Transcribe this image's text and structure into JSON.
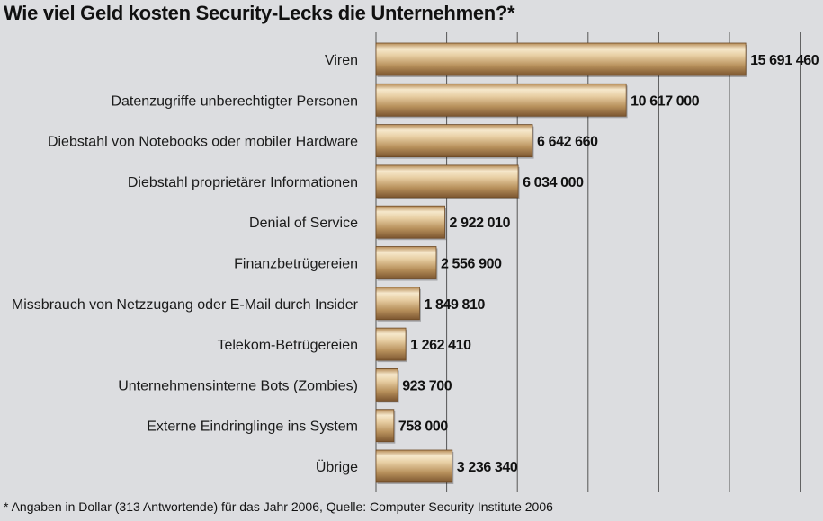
{
  "title": "Wie viel Geld kosten Security-Lecks die Unternehmen?*",
  "footnote": "* Angaben in Dollar (313 Antwortende) für das Jahr 2006, Quelle: Computer Security Institute 2006",
  "colors": {
    "background": "#dcdde0",
    "bar_light": "#f4e2c2",
    "bar_mid": "#c9a06a",
    "bar_dark": "#8a6232",
    "gridline": "#555555"
  },
  "chart_data": {
    "type": "bar",
    "orientation": "horizontal",
    "title": "Wie viel Geld kosten Security-Lecks die Unternehmen?*",
    "categories": [
      "Viren",
      "Datenzugriffe unberechtigter Personen",
      "Diebstahl von Notebooks oder mobiler Hardware",
      "Diebstahl proprietärer Informationen",
      "Denial of Service",
      "Finanzbetrügereien",
      "Missbrauch von Netzzugang oder E-Mail durch Insider",
      "Telekom-Betrügereien",
      "Unternehmensinterne Bots (Zombies)",
      "Externe Eindringlinge ins System",
      "Übrige"
    ],
    "values": [
      15691460,
      10617000,
      6642660,
      6034000,
      2922010,
      2556900,
      1849810,
      1262410,
      923700,
      758000,
      3236340
    ],
    "value_labels": [
      "15 691 460",
      "10 617 000",
      "6 642 660",
      "6 034 000",
      "2 922 010",
      "2 556 900",
      "1 849 810",
      "1 262 410",
      "923 700",
      "758 000",
      "3 236 340"
    ],
    "xlim": [
      0,
      18000000
    ],
    "gridlines": [
      3000000,
      6000000,
      9000000,
      12000000,
      15000000,
      18000000
    ],
    "grid": true,
    "xlabel": "",
    "ylabel": ""
  }
}
